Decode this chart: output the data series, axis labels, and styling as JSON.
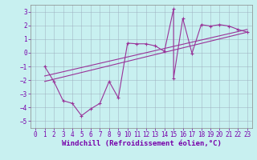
{
  "xlabel": "Windchill (Refroidissement éolien,°C)",
  "bg_color": "#c8f0f0",
  "line_color": "#993399",
  "grid_color": "#99aabb",
  "xlim": [
    -0.5,
    23.5
  ],
  "ylim": [
    -5.5,
    3.5
  ],
  "yticks": [
    -5,
    -4,
    -3,
    -2,
    -1,
    0,
    1,
    2,
    3
  ],
  "xticks": [
    0,
    1,
    2,
    3,
    4,
    5,
    6,
    7,
    8,
    9,
    10,
    11,
    12,
    13,
    14,
    15,
    16,
    17,
    18,
    19,
    20,
    21,
    22,
    23
  ],
  "line1_x": [
    1,
    2,
    3,
    4,
    5,
    6,
    7,
    8,
    9,
    10,
    11,
    12,
    13,
    14,
    15,
    15,
    16,
    17,
    18,
    19,
    20,
    21,
    22,
    23
  ],
  "line1_y": [
    -1.0,
    -2.1,
    -3.5,
    -3.7,
    -4.6,
    -4.1,
    -3.7,
    -2.1,
    -3.3,
    0.7,
    0.65,
    0.65,
    0.5,
    0.1,
    3.2,
    -1.85,
    2.5,
    -0.05,
    2.05,
    1.95,
    2.05,
    1.95,
    1.7,
    1.5
  ],
  "reg_line1_x": [
    1,
    23
  ],
  "reg_line1_y": [
    -2.1,
    1.5
  ],
  "reg_line2_x": [
    1,
    23
  ],
  "reg_line2_y": [
    -1.7,
    1.7
  ],
  "font_color": "#7700aa",
  "tick_fontsize": 5.5,
  "label_fontsize": 6.5
}
